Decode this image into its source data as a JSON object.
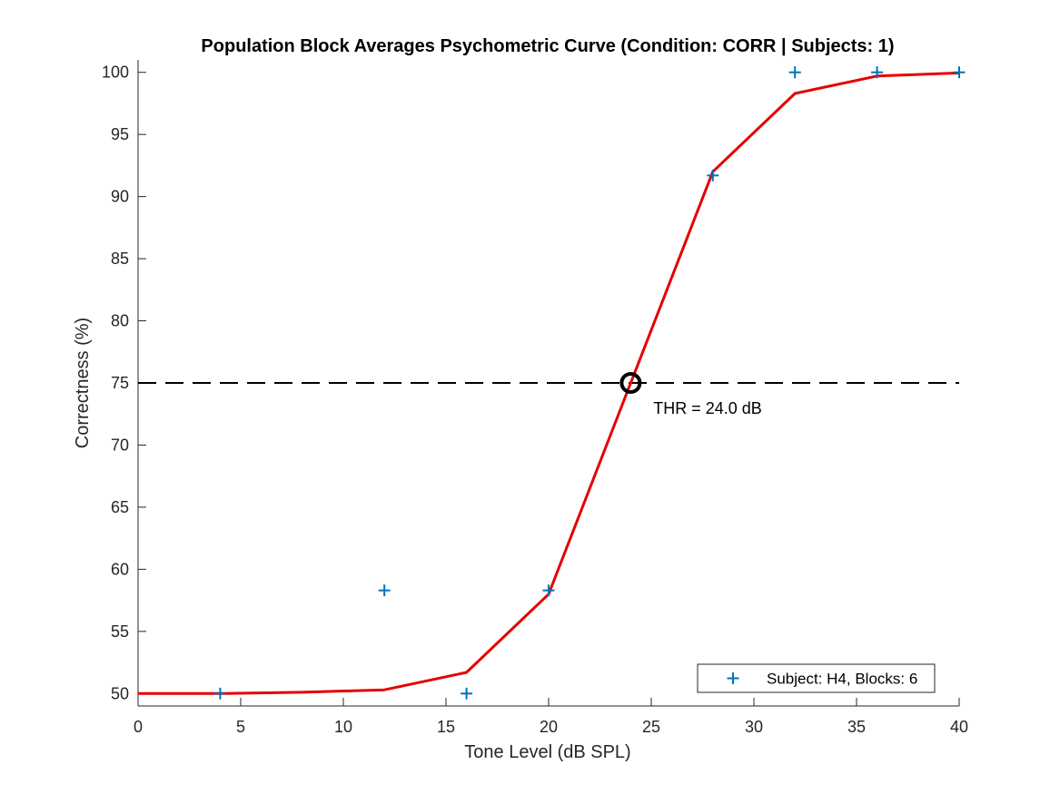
{
  "chart_data": {
    "type": "line",
    "title": "Population Block Averages Psychometric Curve (Condition: CORR | Subjects: 1)",
    "xlabel": "Tone Level (dB SPL)",
    "ylabel": "Correctness (%)",
    "xlim": [
      0,
      40
    ],
    "ylim": [
      49,
      101
    ],
    "xticks": [
      0,
      5,
      10,
      15,
      20,
      25,
      30,
      35,
      40
    ],
    "yticks": [
      50,
      55,
      60,
      65,
      70,
      75,
      80,
      85,
      90,
      95,
      100
    ],
    "grid": false,
    "legend_position": "bottom-right",
    "series": [
      {
        "name": "Subject: H4, Blocks: 6",
        "kind": "scatter",
        "marker": "plus",
        "color": "#0072BD",
        "x": [
          4,
          12,
          16,
          20,
          28,
          32,
          36,
          40
        ],
        "y": [
          50,
          58.3,
          50,
          58.3,
          91.7,
          100,
          100,
          100
        ]
      },
      {
        "kind": "line",
        "color": "#E60000",
        "x": [
          0,
          4,
          8,
          12,
          16,
          20,
          24,
          28,
          32,
          36,
          40
        ],
        "y": [
          50,
          50,
          50.1,
          50.3,
          51.7,
          58,
          75,
          92,
          98.3,
          99.7,
          99.95
        ]
      }
    ],
    "reference_line": {
      "y": 75,
      "style": "dashed",
      "color": "#000000"
    },
    "threshold_marker": {
      "x": 24,
      "y": 75,
      "marker": "circle",
      "color": "#000000"
    },
    "annotations": [
      {
        "text": "THR = 24.0 dB",
        "x": 25.1,
        "y": 72.5
      }
    ]
  }
}
